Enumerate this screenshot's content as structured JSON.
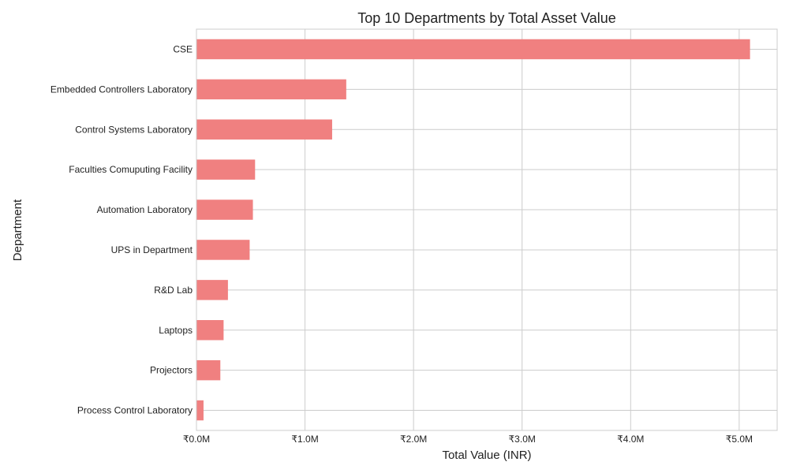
{
  "chart_data": {
    "type": "bar",
    "orientation": "horizontal",
    "title": "Top 10 Departments by Total Asset Value",
    "xlabel": "Total Value (INR)",
    "ylabel": "Department",
    "categories": [
      "CSE",
      "Embedded Controllers Laboratory",
      "Control Systems Laboratory",
      "Faculties Comuputing Facility",
      "Automation Laboratory",
      "UPS in Department",
      "R&D Lab",
      "Laptops",
      "Projectors",
      "Process Control Laboratory"
    ],
    "values": [
      5100000,
      1380000,
      1250000,
      540000,
      520000,
      490000,
      290000,
      250000,
      220000,
      65000
    ],
    "xlim": [
      0,
      5350000
    ],
    "xticks": [
      0,
      1000000,
      2000000,
      3000000,
      4000000,
      5000000
    ],
    "xtick_labels": [
      "₹0.0M",
      "₹1.0M",
      "₹2.0M",
      "₹3.0M",
      "₹4.0M",
      "₹5.0M"
    ],
    "grid": true,
    "bar_color": "#f08080"
  }
}
